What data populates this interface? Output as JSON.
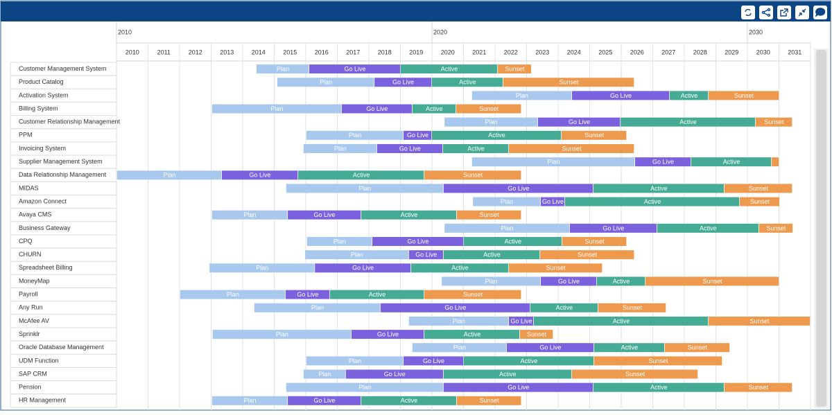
{
  "chart_data": {
    "type": "gantt",
    "xlim": [
      2010,
      2032
    ],
    "xticks": [
      2010,
      2011,
      2012,
      2013,
      2014,
      2015,
      2016,
      2017,
      2018,
      2019,
      2020,
      2021,
      2022,
      2023,
      2024,
      2025,
      2026,
      2027,
      2028,
      2029,
      2030,
      2031
    ],
    "major_ticks": [
      2010,
      2020,
      2030
    ],
    "phases": [
      {
        "name": "Plan",
        "color": "#a9c8ee"
      },
      {
        "name": "Go Live",
        "color": "#7a62de"
      },
      {
        "name": "Active",
        "color": "#45ab94"
      },
      {
        "name": "Sunset",
        "color": "#ee9a4e"
      }
    ],
    "rows": [
      {
        "name": "Customer Management System",
        "starts": [
          2014.44,
          2016.11,
          2019.01,
          2022.09
        ],
        "end": 2023.16
      },
      {
        "name": "Product Catalog",
        "starts": [
          2015.1,
          2018.18,
          2020.0,
          2022.26
        ],
        "end": 2026.42
      },
      {
        "name": "Activation System",
        "starts": [
          2021.27,
          2024.44,
          2027.54,
          2028.77
        ],
        "end": 2031.01
      },
      {
        "name": "Billing System",
        "starts": [
          2013.03,
          2017.14,
          2019.38,
          2020.77
        ],
        "end": 2022.84
      },
      {
        "name": "Customer Relationship Management",
        "starts": [
          2020.4,
          2023.36,
          2025.98,
          2030.26
        ],
        "end": 2031.43
      },
      {
        "name": "PPM",
        "starts": [
          2016.02,
          2019.1,
          2020.0,
          2024.11
        ],
        "end": 2026.18
      },
      {
        "name": "Invoicing System",
        "starts": [
          2015.93,
          2018.26,
          2020.35,
          2022.44
        ],
        "end": 2026.42
      },
      {
        "name": "Supplier Management System",
        "starts": [
          2021.27,
          2026.44,
          2028.22,
          2030.77
        ],
        "end": 2031.01
      },
      {
        "name": "Data Relationship Management",
        "starts": [
          2010.02,
          2013.34,
          2015.76,
          2019.76
        ],
        "end": 2022.84
      },
      {
        "name": "MIDAS",
        "starts": [
          2015.38,
          2020.37,
          2025.12,
          2029.27
        ],
        "end": 2031.43
      },
      {
        "name": "Amazon Connect",
        "starts": [
          2021.3,
          2023.45,
          2024.22,
          2029.76
        ],
        "end": 2031.03
      },
      {
        "name": "Avaya CMS",
        "starts": [
          2013.03,
          2015.43,
          2017.76,
          2020.79
        ],
        "end": 2022.84
      },
      {
        "name": "Business Gateway",
        "starts": [
          2020.4,
          2024.37,
          2027.14,
          2030.37
        ],
        "end": 2031.45
      },
      {
        "name": "CPQ",
        "starts": [
          2016.04,
          2018.11,
          2021.01,
          2024.13
        ],
        "end": 2026.18
      },
      {
        "name": "CHURN",
        "starts": [
          2015.98,
          2019.27,
          2020.37,
          2023.43
        ],
        "end": 2026.42
      },
      {
        "name": "Spreadsheet Billing",
        "starts": [
          2012.95,
          2016.29,
          2019.34,
          2022.44
        ],
        "end": 2025.41
      },
      {
        "name": "MoneyMap",
        "starts": [
          2020.31,
          2023.45,
          2025.23,
          2026.77
        ],
        "end": 2031.01
      },
      {
        "name": "Payroll",
        "starts": [
          2012.02,
          2015.36,
          2016.77,
          2019.76
        ],
        "end": 2022.84
      },
      {
        "name": "Any Run",
        "starts": [
          2014.37,
          2018.37,
          2023.12,
          2025.27
        ],
        "end": 2027.43
      },
      {
        "name": "McAfee AV",
        "starts": [
          2019.27,
          2022.44,
          2023.23,
          2028.77
        ],
        "end": 2032.0
      },
      {
        "name": "Sprinklr",
        "starts": [
          2013.05,
          2017.45,
          2019.76,
          2022.79
        ],
        "end": 2023.85
      },
      {
        "name": "Oracle Database Management",
        "starts": [
          2019.38,
          2022.37,
          2025.14,
          2027.38
        ],
        "end": 2029.45
      },
      {
        "name": "UDM Function",
        "starts": [
          2016.02,
          2019.1,
          2021.01,
          2025.14
        ],
        "end": 2029.21
      },
      {
        "name": "SAP CRM",
        "starts": [
          2015.93,
          2017.27,
          2020.37,
          2024.44
        ],
        "end": 2028.44
      },
      {
        "name": "Pension",
        "starts": [
          2015.38,
          2020.37,
          2025.12,
          2029.27
        ],
        "end": 2031.43
      },
      {
        "name": "HR Management",
        "starts": [
          2013.03,
          2015.43,
          2017.76,
          2020.79
        ],
        "end": 2022.84
      }
    ]
  }
}
